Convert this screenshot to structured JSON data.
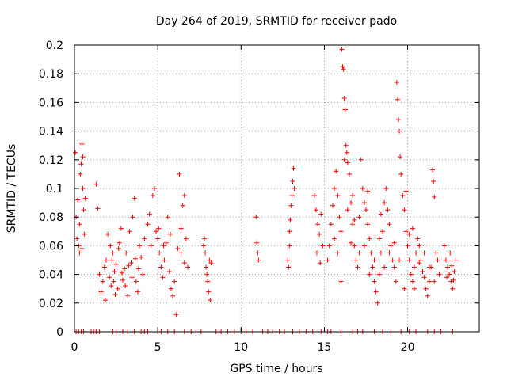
{
  "chart_data": {
    "type": "scatter",
    "title": "Day 264 of 2019, SRMTID for receiver pado",
    "xlabel": "GPS time / hours",
    "ylabel": "SRMTID / TECUs",
    "xlim": [
      0,
      24.3
    ],
    "ylim": [
      0,
      0.2
    ],
    "xticks": [
      0,
      5,
      10,
      15,
      20
    ],
    "xtick_labels": [
      "0",
      "5",
      "10",
      "15",
      "20"
    ],
    "yticks": [
      0,
      0.02,
      0.04,
      0.06,
      0.08,
      0.1,
      0.12,
      0.14,
      0.16,
      0.18,
      0.2
    ],
    "ytick_labels": [
      "0",
      "0.02",
      "0.04",
      "0.06",
      "0.08",
      "0.1",
      "0.12",
      "0.14",
      "0.16",
      "0.18",
      "0.2"
    ],
    "grid": true,
    "marker": "plus",
    "color": "#ff0000",
    "series": [
      {
        "name": "SRMTID",
        "points": [
          [
            0.05,
            0.125
          ],
          [
            0.1,
            0.08
          ],
          [
            0.15,
            0.065
          ],
          [
            0.2,
            0.092
          ],
          [
            0.25,
            0.06
          ],
          [
            0.3,
            0.075
          ],
          [
            0.35,
            0.11
          ],
          [
            0.4,
            0.117
          ],
          [
            0.45,
            0.131
          ],
          [
            0.5,
            0.1
          ],
          [
            0.55,
            0.085
          ],
          [
            0.6,
            0.068
          ],
          [
            0.65,
            0.093
          ],
          [
            0.3,
            0.055
          ],
          [
            0.45,
            0.058
          ],
          [
            0.5,
            0.122
          ],
          [
            1.3,
            0.103
          ],
          [
            1.4,
            0.086
          ],
          [
            1.5,
            0.04
          ],
          [
            1.6,
            0.028
          ],
          [
            1.7,
            0.035
          ],
          [
            1.8,
            0.045
          ],
          [
            1.9,
            0.05
          ],
          [
            2.0,
            0.068
          ],
          [
            2.1,
            0.038
          ],
          [
            2.2,
            0.032
          ],
          [
            2.3,
            0.055
          ],
          [
            2.4,
            0.042
          ],
          [
            2.5,
            0.047
          ],
          [
            2.6,
            0.03
          ],
          [
            2.7,
            0.062
          ],
          [
            2.8,
            0.072
          ],
          [
            2.9,
            0.036
          ],
          [
            3.0,
            0.044
          ],
          [
            3.1,
            0.055
          ],
          [
            3.2,
            0.025
          ],
          [
            3.3,
            0.07
          ],
          [
            3.4,
            0.048
          ],
          [
            3.5,
            0.08
          ],
          [
            3.6,
            0.093
          ],
          [
            3.7,
            0.035
          ],
          [
            3.8,
            0.028
          ],
          [
            3.9,
            0.06
          ],
          [
            4.0,
            0.052
          ],
          [
            4.1,
            0.04
          ],
          [
            4.2,
            0.065
          ],
          [
            2.25,
            0.05
          ],
          [
            2.35,
            0.035
          ],
          [
            2.45,
            0.026
          ],
          [
            2.65,
            0.058
          ],
          [
            2.85,
            0.041
          ],
          [
            3.05,
            0.032
          ],
          [
            3.25,
            0.046
          ],
          [
            3.45,
            0.038
          ],
          [
            3.65,
            0.051
          ],
          [
            3.85,
            0.044
          ],
          [
            1.85,
            0.022
          ],
          [
            2.15,
            0.06
          ],
          [
            4.4,
            0.075
          ],
          [
            4.5,
            0.082
          ],
          [
            4.6,
            0.06
          ],
          [
            4.7,
            0.095
          ],
          [
            4.8,
            0.1
          ],
          [
            4.9,
            0.07
          ],
          [
            5.0,
            0.065
          ],
          [
            5.1,
            0.055
          ],
          [
            5.2,
            0.045
          ],
          [
            5.3,
            0.038
          ],
          [
            5.4,
            0.05
          ],
          [
            5.5,
            0.062
          ],
          [
            5.6,
            0.08
          ],
          [
            5.7,
            0.042
          ],
          [
            5.8,
            0.03
          ],
          [
            5.9,
            0.025
          ],
          [
            6.0,
            0.035
          ],
          [
            6.1,
            0.012
          ],
          [
            6.2,
            0.058
          ],
          [
            6.3,
            0.11
          ],
          [
            6.4,
            0.072
          ],
          [
            6.5,
            0.088
          ],
          [
            6.6,
            0.095
          ],
          [
            6.7,
            0.065
          ],
          [
            6.8,
            0.045
          ],
          [
            6.4,
            0.055
          ],
          [
            6.6,
            0.048
          ],
          [
            5.05,
            0.072
          ],
          [
            5.35,
            0.06
          ],
          [
            5.75,
            0.068
          ],
          [
            7.8,
            0.065
          ],
          [
            7.85,
            0.055
          ],
          [
            7.9,
            0.045
          ],
          [
            7.95,
            0.04
          ],
          [
            8.0,
            0.035
          ],
          [
            8.05,
            0.028
          ],
          [
            8.1,
            0.05
          ],
          [
            8.15,
            0.022
          ],
          [
            8.2,
            0.048
          ],
          [
            7.75,
            0.06
          ],
          [
            10.9,
            0.08
          ],
          [
            10.95,
            0.062
          ],
          [
            11.0,
            0.055
          ],
          [
            11.05,
            0.05
          ],
          [
            12.8,
            0.05
          ],
          [
            12.85,
            0.045
          ],
          [
            12.9,
            0.06
          ],
          [
            12.95,
            0.078
          ],
          [
            13.0,
            0.088
          ],
          [
            13.05,
            0.095
          ],
          [
            13.1,
            0.105
          ],
          [
            13.15,
            0.114
          ],
          [
            13.2,
            0.1
          ],
          [
            12.9,
            0.07
          ],
          [
            14.4,
            0.095
          ],
          [
            14.5,
            0.085
          ],
          [
            14.6,
            0.075
          ],
          [
            14.7,
            0.068
          ],
          [
            14.8,
            0.082
          ],
          [
            14.9,
            0.06
          ],
          [
            14.55,
            0.055
          ],
          [
            14.75,
            0.048
          ],
          [
            15.2,
            0.05
          ],
          [
            15.3,
            0.06
          ],
          [
            15.4,
            0.075
          ],
          [
            15.5,
            0.088
          ],
          [
            15.6,
            0.1
          ],
          [
            15.7,
            0.112
          ],
          [
            15.8,
            0.095
          ],
          [
            15.9,
            0.08
          ],
          [
            16.0,
            0.07
          ],
          [
            16.05,
            0.197
          ],
          [
            16.1,
            0.185
          ],
          [
            16.15,
            0.183
          ],
          [
            16.2,
            0.163
          ],
          [
            16.25,
            0.155
          ],
          [
            16.3,
            0.13
          ],
          [
            16.35,
            0.125
          ],
          [
            16.4,
            0.118
          ],
          [
            16.5,
            0.11
          ],
          [
            16.6,
            0.09
          ],
          [
            16.7,
            0.075
          ],
          [
            16.8,
            0.06
          ],
          [
            16.9,
            0.05
          ],
          [
            17.0,
            0.045
          ],
          [
            17.1,
            0.08
          ],
          [
            17.2,
            0.12
          ],
          [
            17.3,
            0.1
          ],
          [
            17.4,
            0.09
          ],
          [
            17.5,
            0.085
          ],
          [
            17.6,
            0.075
          ],
          [
            17.7,
            0.065
          ],
          [
            17.8,
            0.055
          ],
          [
            17.9,
            0.045
          ],
          [
            18.0,
            0.035
          ],
          [
            18.1,
            0.028
          ],
          [
            18.2,
            0.02
          ],
          [
            18.3,
            0.04
          ],
          [
            18.4,
            0.055
          ],
          [
            18.5,
            0.07
          ],
          [
            18.6,
            0.09
          ],
          [
            18.7,
            0.1
          ],
          [
            18.8,
            0.085
          ],
          [
            18.9,
            0.075
          ],
          [
            19.0,
            0.06
          ],
          [
            19.1,
            0.05
          ],
          [
            19.2,
            0.045
          ],
          [
            19.3,
            0.035
          ],
          [
            19.35,
            0.174
          ],
          [
            19.4,
            0.162
          ],
          [
            19.45,
            0.148
          ],
          [
            19.5,
            0.14
          ],
          [
            19.55,
            0.122
          ],
          [
            19.6,
            0.11
          ],
          [
            19.7,
            0.095
          ],
          [
            19.8,
            0.085
          ],
          [
            19.9,
            0.07
          ],
          [
            20.0,
            0.06
          ],
          [
            20.1,
            0.05
          ],
          [
            20.2,
            0.04
          ],
          [
            20.3,
            0.035
          ],
          [
            20.4,
            0.045
          ],
          [
            20.5,
            0.055
          ],
          [
            20.6,
            0.065
          ],
          [
            20.7,
            0.06
          ],
          [
            20.8,
            0.05
          ],
          [
            20.9,
            0.042
          ],
          [
            21.0,
            0.038
          ],
          [
            21.1,
            0.03
          ],
          [
            21.2,
            0.025
          ],
          [
            21.3,
            0.035
          ],
          [
            21.4,
            0.045
          ],
          [
            21.5,
            0.113
          ],
          [
            21.55,
            0.105
          ],
          [
            21.6,
            0.094
          ],
          [
            21.7,
            0.055
          ],
          [
            21.8,
            0.05
          ],
          [
            21.9,
            0.04
          ],
          [
            15.6,
            0.065
          ],
          [
            15.8,
            0.055
          ],
          [
            16.0,
            0.035
          ],
          [
            16.4,
            0.085
          ],
          [
            16.6,
            0.062
          ],
          [
            16.8,
            0.078
          ],
          [
            17.1,
            0.055
          ],
          [
            17.4,
            0.06
          ],
          [
            17.7,
            0.04
          ],
          [
            18.0,
            0.05
          ],
          [
            18.3,
            0.065
          ],
          [
            18.6,
            0.045
          ],
          [
            18.9,
            0.055
          ],
          [
            19.2,
            0.062
          ],
          [
            19.5,
            0.05
          ],
          [
            19.8,
            0.03
          ],
          [
            20.1,
            0.068
          ],
          [
            20.4,
            0.03
          ],
          [
            20.7,
            0.048
          ],
          [
            21.0,
            0.055
          ],
          [
            21.3,
            0.045
          ],
          [
            21.6,
            0.035
          ],
          [
            16.2,
            0.12
          ],
          [
            16.7,
            0.095
          ],
          [
            17.6,
            0.098
          ],
          [
            18.4,
            0.082
          ],
          [
            19.9,
            0.098
          ],
          [
            20.3,
            0.072
          ],
          [
            22.2,
            0.06
          ],
          [
            22.3,
            0.05
          ],
          [
            22.4,
            0.045
          ],
          [
            22.5,
            0.04
          ],
          [
            22.6,
            0.035
          ],
          [
            22.7,
            0.03
          ],
          [
            22.8,
            0.042
          ],
          [
            22.9,
            0.05
          ],
          [
            22.35,
            0.038
          ],
          [
            22.55,
            0.055
          ],
          [
            22.75,
            0.036
          ],
          [
            22.65,
            0.046
          ],
          [
            0.1,
            0
          ],
          [
            0.25,
            0
          ],
          [
            0.4,
            0
          ],
          [
            0.55,
            0
          ],
          [
            1.0,
            0
          ],
          [
            1.15,
            0
          ],
          [
            1.3,
            0
          ],
          [
            1.5,
            0
          ],
          [
            2.3,
            0
          ],
          [
            2.5,
            0
          ],
          [
            2.9,
            0
          ],
          [
            3.2,
            0
          ],
          [
            3.6,
            0
          ],
          [
            4.0,
            0
          ],
          [
            4.2,
            0
          ],
          [
            4.4,
            0
          ],
          [
            5.0,
            0
          ],
          [
            5.2,
            0
          ],
          [
            5.6,
            0
          ],
          [
            6.0,
            0
          ],
          [
            6.6,
            0
          ],
          [
            7.0,
            0
          ],
          [
            7.3,
            0
          ],
          [
            7.6,
            0
          ],
          [
            8.5,
            0
          ],
          [
            8.8,
            0
          ],
          [
            9.2,
            0
          ],
          [
            9.6,
            0
          ],
          [
            10.0,
            0
          ],
          [
            10.3,
            0
          ],
          [
            10.7,
            0
          ],
          [
            11.3,
            0
          ],
          [
            11.6,
            0
          ],
          [
            11.9,
            0
          ],
          [
            12.3,
            0
          ],
          [
            12.6,
            0
          ],
          [
            13.1,
            0
          ],
          [
            13.5,
            0
          ],
          [
            13.9,
            0
          ],
          [
            14.3,
            0
          ],
          [
            14.8,
            0
          ],
          [
            15.2,
            0
          ],
          [
            15.4,
            0
          ],
          [
            16.0,
            0
          ],
          [
            16.7,
            0
          ],
          [
            17.0,
            0
          ],
          [
            17.3,
            0
          ],
          [
            18.0,
            0
          ],
          [
            18.5,
            0
          ],
          [
            19.0,
            0
          ],
          [
            19.6,
            0
          ],
          [
            20.1,
            0
          ],
          [
            20.5,
            0
          ],
          [
            21.2,
            0
          ],
          [
            21.6,
            0
          ],
          [
            22.0,
            0
          ],
          [
            22.7,
            0
          ]
        ]
      }
    ]
  }
}
